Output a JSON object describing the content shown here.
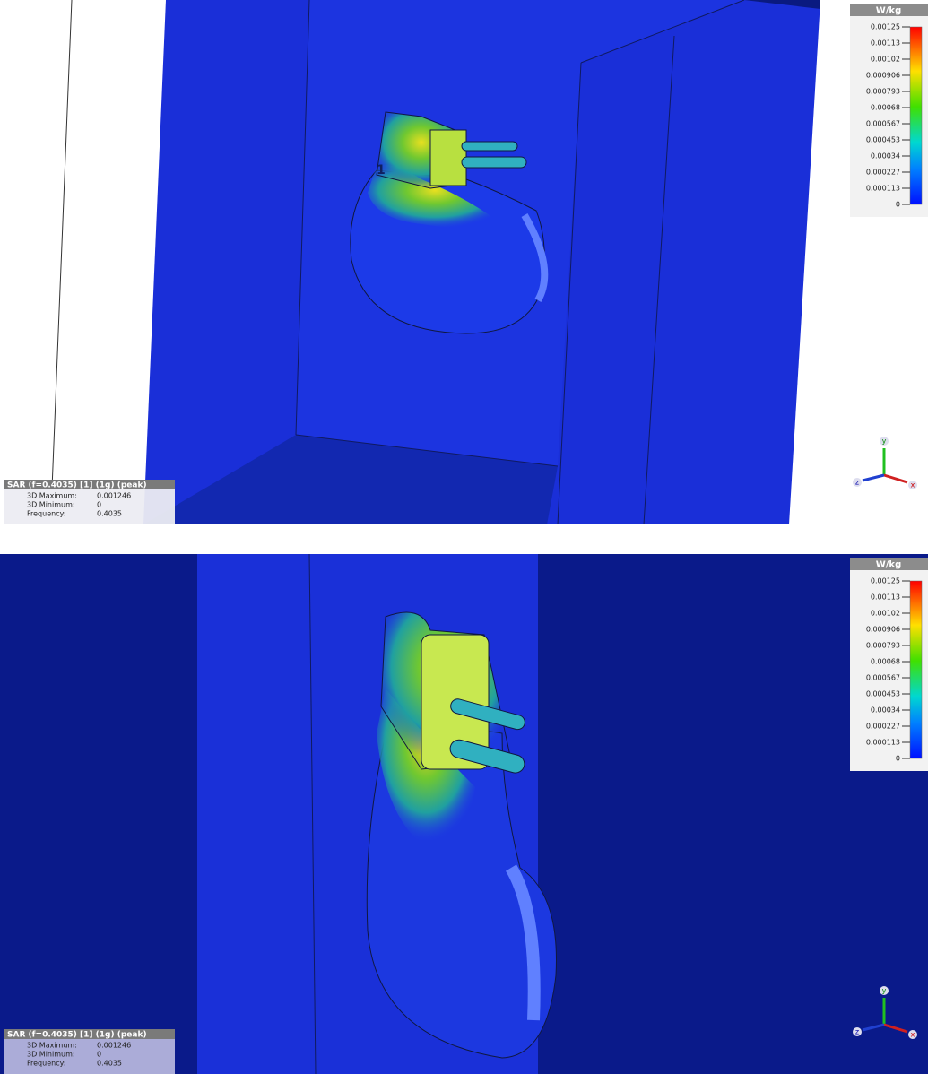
{
  "panels": [
    {
      "marker": "1",
      "legend": {
        "unit": "W/kg",
        "ticks": [
          "0.00125",
          "0.00113",
          "0.00102",
          "0.000906",
          "0.000793",
          "0.00068",
          "0.000567",
          "0.000453",
          "0.00034",
          "0.000227",
          "0.000113",
          "0"
        ]
      },
      "info": {
        "title": "SAR (f=0.4035) [1] (1g) (peak)",
        "rows": [
          [
            "3D Maximum:",
            "0.001246"
          ],
          [
            "3D Minimum:",
            "0"
          ],
          [
            "Frequency:",
            "0.4035"
          ]
        ]
      },
      "axes": {
        "x": "x",
        "y": "y",
        "z": "z"
      }
    },
    {
      "legend": {
        "unit": "W/kg",
        "ticks": [
          "0.00125",
          "0.00113",
          "0.00102",
          "0.000906",
          "0.000793",
          "0.00068",
          "0.000567",
          "0.000453",
          "0.00034",
          "0.000227",
          "0.000113",
          "0"
        ]
      },
      "info": {
        "title": "SAR (f=0.4035) [1] (1g) (peak)",
        "rows": [
          [
            "3D Maximum:",
            "0.001246"
          ],
          [
            "3D Minimum:",
            "0"
          ],
          [
            "Frequency:",
            "0.4035"
          ]
        ]
      },
      "axes": {
        "x": "x",
        "y": "y",
        "z": "z"
      }
    }
  ]
}
